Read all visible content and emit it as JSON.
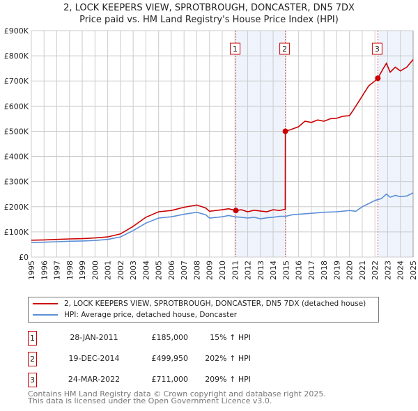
{
  "chart_data": {
    "type": "line",
    "title": "2, LOCK KEEPERS VIEW, SPROTBROUGH, DONCASTER, DN5 7DX",
    "subtitle": "Price paid vs. HM Land Registry's House Price Index (HPI)",
    "xlim": [
      1995,
      2025
    ],
    "ylim": [
      0,
      900000
    ],
    "x_ticks": [
      "1995",
      "1996",
      "1997",
      "1998",
      "1999",
      "2000",
      "2001",
      "2002",
      "2003",
      "2004",
      "2005",
      "2006",
      "2007",
      "2008",
      "2009",
      "2010",
      "2011",
      "2012",
      "2013",
      "2014",
      "2015",
      "2016",
      "2017",
      "2018",
      "2019",
      "2020",
      "2021",
      "2022",
      "2023",
      "2024",
      "2025"
    ],
    "y_ticks": [
      {
        "v": 0,
        "label": "£0"
      },
      {
        "v": 100000,
        "label": "£100K"
      },
      {
        "v": 200000,
        "label": "£200K"
      },
      {
        "v": 300000,
        "label": "£300K"
      },
      {
        "v": 400000,
        "label": "£400K"
      },
      {
        "v": 500000,
        "label": "£500K"
      },
      {
        "v": 600000,
        "label": "£600K"
      },
      {
        "v": 700000,
        "label": "£700K"
      },
      {
        "v": 800000,
        "label": "£800K"
      },
      {
        "v": 900000,
        "label": "£900K"
      }
    ],
    "grid": true,
    "series": [
      {
        "name": "2, LOCK KEEPERS VIEW, SPROTBROUGH, DONCASTER, DN5 7DX (detached house)",
        "color": "#cc0000",
        "x": [
          1995,
          1996,
          1997,
          1998,
          1999,
          2000,
          2001,
          2002,
          2003,
          2004,
          2005,
          2006,
          2007,
          2008,
          2008.7,
          2009,
          2010,
          2010.5,
          2011.07,
          2011.5,
          2012,
          2012.5,
          2013,
          2013.5,
          2014,
          2014.5,
          2014.95,
          2014.96,
          2015.3,
          2016,
          2016.5,
          2017,
          2017.5,
          2018,
          2018.5,
          2019,
          2019.5,
          2020,
          2020.5,
          2021,
          2021.5,
          2022,
          2022.23,
          2022.6,
          2022.9,
          2023.2,
          2023.6,
          2024,
          2024.5,
          2025
        ],
        "y": [
          67000,
          68000,
          70000,
          72000,
          73000,
          76000,
          80000,
          92000,
          122000,
          158000,
          180000,
          185000,
          198000,
          207000,
          195000,
          182000,
          188000,
          192000,
          185000,
          188000,
          180000,
          186000,
          183000,
          180000,
          188000,
          185000,
          190000,
          499950,
          505000,
          518000,
          540000,
          535000,
          545000,
          540000,
          550000,
          552000,
          560000,
          562000,
          600000,
          640000,
          680000,
          700000,
          711000,
          745000,
          770000,
          735000,
          755000,
          740000,
          755000,
          785000
        ]
      },
      {
        "name": "HPI: Average price, detached house, Doncaster",
        "color": "#5b8ed6",
        "x": [
          1995,
          1996,
          1997,
          1998,
          1999,
          2000,
          2001,
          2002,
          2003,
          2004,
          2005,
          2006,
          2007,
          2008,
          2008.7,
          2009,
          2010,
          2010.5,
          2011,
          2011.5,
          2012,
          2012.5,
          2013,
          2013.5,
          2014,
          2014.5,
          2015,
          2015.5,
          2016,
          2017,
          2018,
          2019,
          2020,
          2020.5,
          2021,
          2021.5,
          2022,
          2022.5,
          2022.9,
          2023.2,
          2023.6,
          2024,
          2024.5,
          2025
        ],
        "y": [
          58000,
          59000,
          61000,
          63000,
          64000,
          66000,
          70000,
          80000,
          105000,
          135000,
          155000,
          160000,
          170000,
          178000,
          168000,
          155000,
          160000,
          165000,
          160000,
          158000,
          155000,
          158000,
          152000,
          156000,
          158000,
          162000,
          162000,
          168000,
          170000,
          174000,
          178000,
          180000,
          185000,
          182000,
          200000,
          212000,
          225000,
          232000,
          250000,
          238000,
          245000,
          240000,
          243000,
          255000
        ]
      }
    ],
    "sales": [
      {
        "label": "1",
        "x": 2011.07,
        "y": 185000
      },
      {
        "label": "2",
        "x": 2014.96,
        "y": 499950
      },
      {
        "label": "3",
        "x": 2022.23,
        "y": 711000
      }
    ],
    "shaded_ranges": [
      [
        2011.07,
        2014.96
      ],
      [
        2022.23,
        2025
      ]
    ]
  },
  "legend": {
    "property": "2, LOCK KEEPERS VIEW, SPROTBROUGH, DONCASTER, DN5 7DX (detached house)",
    "hpi": "HPI: Average price, detached house, Doncaster"
  },
  "transactions": [
    {
      "num": "1",
      "date": "28-JAN-2011",
      "price": "£185,000",
      "hpi": "15% ↑ HPI"
    },
    {
      "num": "2",
      "date": "19-DEC-2014",
      "price": "£499,950",
      "hpi": "202% ↑ HPI"
    },
    {
      "num": "3",
      "date": "24-MAR-2022",
      "price": "£711,000",
      "hpi": "209% ↑ HPI"
    }
  ],
  "footer": {
    "line1": "Contains HM Land Registry data © Crown copyright and database right 2025.",
    "line2": "This data is licensed under the Open Government Licence v3.0."
  }
}
